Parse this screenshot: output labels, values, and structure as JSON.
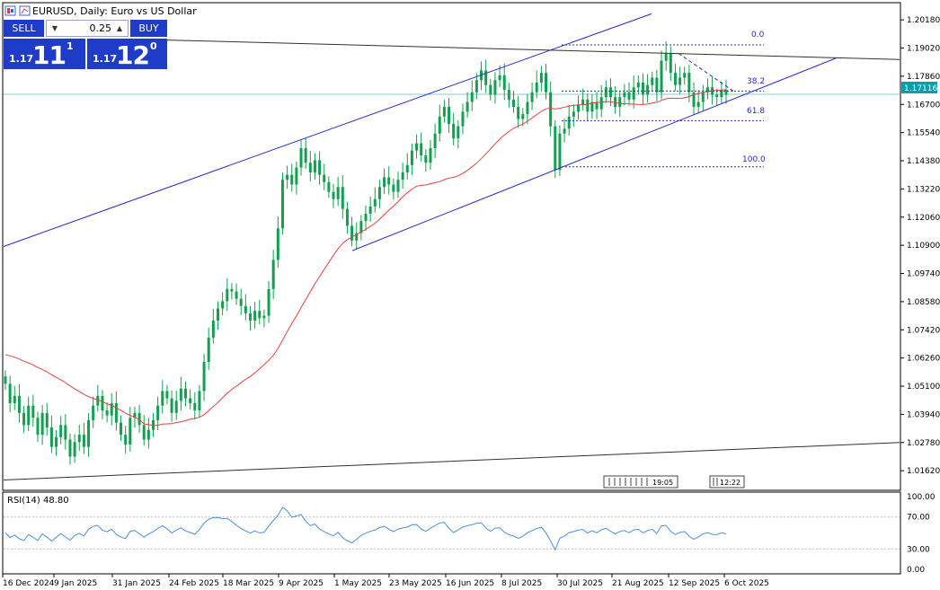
{
  "window": {
    "title": "EURUSD, Daily:  Euro vs US Dollar"
  },
  "trade_panel": {
    "sell_label": "SELL",
    "buy_label": "BUY",
    "lot_value": "0.25",
    "sell_price_small": "1.17",
    "sell_price_big": "11",
    "sell_price_sup": "1",
    "buy_price_small": "1.17",
    "buy_price_big": "12",
    "buy_price_sup": "0"
  },
  "colors": {
    "candle": "#10a050",
    "ma": "#e84040",
    "channel": "#2828d0",
    "fib": "#2828d0",
    "trend": "#303030",
    "price_line": "#8cc8c8",
    "price_label": "#00a0b0",
    "rsi": "#4a90e0",
    "grid": "#cccccc"
  },
  "chart_data": {
    "type": "candlestick",
    "symbol": "EURUSD",
    "timeframe": "Daily",
    "ylim": [
      1.0085,
      1.2085
    ],
    "y_ticks": [
      "1.20180",
      "1.19020",
      "1.17860",
      "1.16700",
      "1.15540",
      "1.14380",
      "1.13220",
      "1.12060",
      "1.10900",
      "1.09740",
      "1.08580",
      "1.07420",
      "1.06260",
      "1.05100",
      "1.03940",
      "1.02780",
      "1.01620"
    ],
    "x_ticks": [
      "16 Dec 2024",
      "9 Jan 2025",
      "31 Jan 2025",
      "24 Feb 2025",
      "18 Mar 2025",
      "9 Apr 2025",
      "1 May 2025",
      "23 May 2025",
      "16 Jun 2025",
      "8 Jul 2025",
      "30 Jul 2025",
      "21 Aug 2025",
      "12 Sep 2025",
      "6 Oct 2025"
    ],
    "current_price": "1.17116",
    "fib_levels": [
      "0.0",
      "38.2",
      "61.8",
      "100.0"
    ],
    "time_markers": [
      "19:05",
      "12:22"
    ],
    "closes": [
      1.052,
      1.044,
      1.047,
      1.04,
      1.035,
      1.043,
      1.038,
      1.031,
      1.04,
      1.034,
      1.026,
      1.03,
      1.035,
      1.029,
      1.022,
      1.028,
      1.031,
      1.026,
      1.037,
      1.043,
      1.047,
      1.041,
      1.039,
      1.044,
      1.036,
      1.031,
      1.027,
      1.038,
      1.04,
      1.035,
      1.029,
      1.033,
      1.037,
      1.043,
      1.049,
      1.046,
      1.04,
      1.045,
      1.05,
      1.046,
      1.044,
      1.041,
      1.049,
      1.061,
      1.071,
      1.078,
      1.083,
      1.086,
      1.091,
      1.09,
      1.087,
      1.084,
      1.081,
      1.078,
      1.082,
      1.079,
      1.08,
      1.091,
      1.103,
      1.116,
      1.136,
      1.138,
      1.134,
      1.141,
      1.149,
      1.143,
      1.139,
      1.144,
      1.138,
      1.135,
      1.131,
      1.128,
      1.133,
      1.124,
      1.117,
      1.111,
      1.114,
      1.119,
      1.122,
      1.125,
      1.128,
      1.133,
      1.137,
      1.134,
      1.131,
      1.136,
      1.139,
      1.142,
      1.148,
      1.151,
      1.146,
      1.143,
      1.149,
      1.155,
      1.162,
      1.166,
      1.159,
      1.153,
      1.158,
      1.164,
      1.168,
      1.172,
      1.177,
      1.181,
      1.175,
      1.171,
      1.177,
      1.179,
      1.173,
      1.169,
      1.166,
      1.161,
      1.163,
      1.168,
      1.172,
      1.176,
      1.18,
      1.172,
      1.158,
      1.14,
      1.155,
      1.157,
      1.162,
      1.164,
      1.167,
      1.169,
      1.164,
      1.168,
      1.165,
      1.17,
      1.174,
      1.17,
      1.166,
      1.17,
      1.172,
      1.169,
      1.174,
      1.176,
      1.171,
      1.175,
      1.178,
      1.172,
      1.185,
      1.188,
      1.18,
      1.175,
      1.178,
      1.18,
      1.172,
      1.166,
      1.168,
      1.172,
      1.174,
      1.171,
      1.17,
      1.173,
      1.171
    ],
    "series": [
      {
        "name": "RSI(14) 48.80",
        "type": "line",
        "ylim": [
          0,
          100
        ],
        "y_ticks": [
          "100.00",
          "70.00",
          "30.00",
          "0.00"
        ]
      }
    ]
  }
}
